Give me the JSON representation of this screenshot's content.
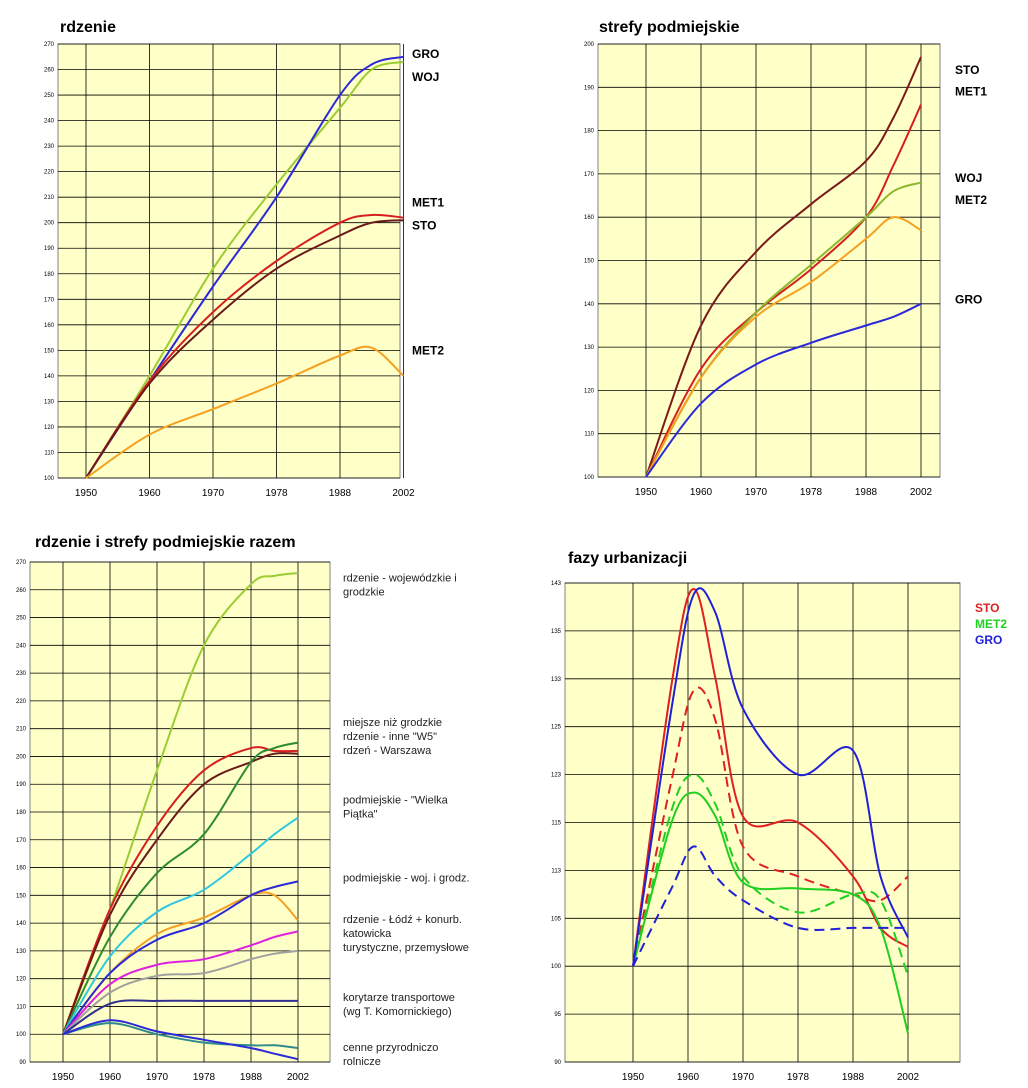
{
  "chart_data": [
    {
      "type": "line",
      "title": "rdzenie",
      "ylim": [
        100,
        270
      ],
      "yticks": [
        100,
        110,
        120,
        130,
        140,
        150,
        160,
        170,
        180,
        190,
        200,
        210,
        220,
        230,
        240,
        250,
        260,
        270
      ],
      "x_ticks": [
        "1950",
        "1960",
        "1970",
        "1978",
        "1988",
        "2002"
      ],
      "grid": true,
      "series": [
        {
          "color": "#9acd32",
          "x": [
            1950,
            1960,
            1970,
            1978,
            1988,
            1995,
            2002
          ],
          "values": [
            100,
            140,
            182,
            215,
            245,
            260,
            263
          ]
        },
        {
          "color": "#2a2ad8",
          "x": [
            1950,
            1960,
            1970,
            1978,
            1988,
            1995,
            2002
          ],
          "values": [
            100,
            138,
            175,
            210,
            250,
            262,
            265
          ]
        },
        {
          "color": "#d62020",
          "x": [
            1950,
            1960,
            1970,
            1978,
            1988,
            1995,
            2002
          ],
          "values": [
            100,
            138,
            165,
            185,
            200,
            203,
            202
          ]
        },
        {
          "color": "#6b1a1a",
          "x": [
            1950,
            1960,
            1970,
            1978,
            1988,
            1995,
            2002
          ],
          "values": [
            100,
            137,
            162,
            182,
            195,
            200,
            201
          ]
        },
        {
          "color": "#f5a020",
          "x": [
            1950,
            1960,
            1970,
            1978,
            1988,
            1995,
            2002
          ],
          "values": [
            100,
            117,
            127,
            137,
            148,
            151,
            140
          ]
        }
      ],
      "labels": [
        {
          "text": "GRO",
          "value": 266,
          "color": "#000000"
        },
        {
          "text": "WOJ",
          "value": 257,
          "color": "#000000"
        },
        {
          "text": "MET1",
          "value": 208,
          "color": "#000000"
        },
        {
          "text": "STO",
          "value": 199,
          "color": "#000000"
        },
        {
          "text": "MET2",
          "value": 150,
          "color": "#000000"
        }
      ]
    },
    {
      "type": "line",
      "title": "strefy podmiejskie",
      "ylim": [
        100,
        200
      ],
      "yticks": [
        100,
        110,
        120,
        130,
        140,
        150,
        160,
        170,
        180,
        190,
        200
      ],
      "x_ticks": [
        "1950",
        "1960",
        "1970",
        "1978",
        "1988",
        "2002"
      ],
      "grid": true,
      "series": [
        {
          "color": "#7a1a1a",
          "x": [
            1950,
            1960,
            1970,
            1978,
            1988,
            1995,
            2002
          ],
          "values": [
            100,
            135,
            152,
            163,
            173,
            183,
            197
          ]
        },
        {
          "color": "#d62020",
          "x": [
            1950,
            1960,
            1970,
            1978,
            1988,
            1995,
            2002
          ],
          "values": [
            100,
            125,
            138,
            148,
            160,
            172,
            186
          ]
        },
        {
          "color": "#8cb82e",
          "x": [
            1950,
            1960,
            1970,
            1978,
            1988,
            1995,
            2002
          ],
          "values": [
            100,
            123,
            138,
            149,
            160,
            166,
            168
          ]
        },
        {
          "color": "#f5a020",
          "x": [
            1950,
            1960,
            1970,
            1978,
            1988,
            1995,
            2002
          ],
          "values": [
            100,
            123,
            137,
            145,
            155,
            160,
            157
          ]
        },
        {
          "color": "#2a2ad8",
          "x": [
            1950,
            1960,
            1970,
            1978,
            1988,
            1995,
            2002
          ],
          "values": [
            100,
            117,
            126,
            131,
            135,
            137,
            140
          ]
        }
      ],
      "labels": [
        {
          "text": "STO",
          "value": 194,
          "color": "#000000"
        },
        {
          "text": "MET1",
          "value": 189,
          "color": "#000000"
        },
        {
          "text": "WOJ",
          "value": 169,
          "color": "#000000"
        },
        {
          "text": "MET2",
          "value": 164,
          "color": "#000000"
        },
        {
          "text": "GRO",
          "value": 141,
          "color": "#000000"
        }
      ]
    },
    {
      "type": "line",
      "title": "rdzenie i strefy podmiejskie razem",
      "ylim": [
        90,
        270
      ],
      "yticks": [
        90,
        100,
        110,
        120,
        130,
        140,
        150,
        160,
        170,
        180,
        190,
        200,
        210,
        220,
        230,
        240,
        250,
        260,
        270
      ],
      "x_ticks": [
        "1950",
        "1960",
        "1970",
        "1978",
        "1988",
        "2002"
      ],
      "grid": true,
      "series": [
        {
          "color": "#9acd32",
          "x": [
            1950,
            1960,
            1970,
            1978,
            1988,
            1995,
            2002
          ],
          "values": [
            100,
            145,
            195,
            240,
            262,
            265,
            266
          ]
        },
        {
          "color": "#d62020",
          "x": [
            1950,
            1960,
            1970,
            1978,
            1988,
            1995,
            2002
          ],
          "values": [
            100,
            145,
            175,
            195,
            203,
            202,
            202
          ]
        },
        {
          "color": "#6b1a1a",
          "x": [
            1950,
            1960,
            1970,
            1978,
            1988,
            1995,
            2002
          ],
          "values": [
            100,
            143,
            170,
            190,
            198,
            201,
            201
          ]
        },
        {
          "color": "#2e8b2e",
          "x": [
            1950,
            1960,
            1970,
            1978,
            1988,
            1995,
            2002
          ],
          "values": [
            100,
            135,
            158,
            172,
            198,
            203,
            205
          ]
        },
        {
          "color": "#30c8e0",
          "x": [
            1950,
            1960,
            1970,
            1978,
            1988,
            1995,
            2002
          ],
          "values": [
            100,
            128,
            144,
            152,
            165,
            172,
            178
          ]
        },
        {
          "color": "#f5a020",
          "x": [
            1950,
            1960,
            1970,
            1978,
            1988,
            1995,
            2002
          ],
          "values": [
            100,
            122,
            136,
            142,
            150,
            150,
            141
          ]
        },
        {
          "color": "#2a2ad8",
          "x": [
            1950,
            1960,
            1970,
            1978,
            1988,
            1995,
            2002
          ],
          "values": [
            100,
            122,
            134,
            140,
            150,
            153,
            155
          ]
        },
        {
          "color": "#e020e0",
          "x": [
            1950,
            1960,
            1970,
            1978,
            1988,
            1995,
            2002
          ],
          "values": [
            100,
            118,
            125,
            127,
            132,
            135,
            137
          ]
        },
        {
          "color": "#a0a0a0",
          "x": [
            1950,
            1960,
            1970,
            1978,
            1988,
            1995,
            2002
          ],
          "values": [
            100,
            115,
            121,
            122,
            127,
            129,
            130
          ]
        },
        {
          "color": "#303090",
          "x": [
            1950,
            1960,
            1970,
            1978,
            1988,
            1995,
            2002
          ],
          "values": [
            100,
            111,
            112,
            112,
            112,
            112,
            112
          ]
        },
        {
          "color": "#2e8b8b",
          "x": [
            1950,
            1960,
            1970,
            1978,
            1988,
            1995,
            2002
          ],
          "values": [
            100,
            104,
            100,
            97,
            96,
            96,
            95
          ]
        },
        {
          "color": "#2a2ad8",
          "x": [
            1950,
            1960,
            1970,
            1978,
            1988,
            1995,
            2002
          ],
          "values": [
            100,
            105,
            101,
            98,
            95,
            93,
            91
          ]
        }
      ],
      "descriptions": [
        {
          "lines": [
            "rdzenie - wojewódzkie i",
            "grodzkie"
          ],
          "value": 263
        },
        {
          "lines": [
            "miejsze niż grodzkie",
            "rdzenie - inne \"W5\"",
            "rdzeń - Warszawa"
          ],
          "value": 211
        },
        {
          "lines": [
            "podmiejskie - \"Wielka",
            "Piątka\""
          ],
          "value": 183
        },
        {
          "lines": [
            "podmiejskie - woj. i grodz."
          ],
          "value": 155
        },
        {
          "lines": [
            "rdzenie - Łódź + konurb.",
            "katowicka",
            "turystyczne, przemysłowe"
          ],
          "value": 140
        },
        {
          "lines": [
            "korytarze transportowe",
            "(wg T. Komornickiego)"
          ],
          "value": 112
        },
        {
          "lines": [
            "cenne przyrodniczo",
            "rolnicze"
          ],
          "value": 94
        }
      ]
    },
    {
      "type": "line",
      "title": "fazy urbanizacji",
      "ylim": [
        90,
        143
      ],
      "yticks": [
        90,
        95,
        100,
        105,
        113,
        115,
        123,
        125,
        133,
        135,
        143
      ],
      "ytick_labels": [
        "90",
        "95",
        "100",
        "105",
        "113",
        "115",
        "123",
        "125",
        "133",
        "135",
        "143"
      ],
      "x_ticks": [
        "1950",
        "1960",
        "1970",
        "1978",
        "1988",
        "2002"
      ],
      "grid": true,
      "series": [
        {
          "color": "#e02020",
          "dash": false,
          "x": [
            1950,
            1957,
            1961,
            1965,
            1970,
            1978,
            1988,
            1995,
            2002
          ],
          "values": [
            100,
            132,
            142,
            133,
            116,
            115,
            112,
            104,
            102
          ]
        },
        {
          "color": "#e02020",
          "dash": true,
          "x": [
            1950,
            1957,
            1961,
            1965,
            1970,
            1978,
            1988,
            1995,
            2002
          ],
          "values": [
            100,
            122,
            131,
            126,
            114,
            112,
            109,
            108,
            112
          ]
        },
        {
          "color": "#20d020",
          "dash": false,
          "x": [
            1950,
            1957,
            1961,
            1965,
            1970,
            1978,
            1988,
            1995,
            2002
          ],
          "values": [
            100,
            115,
            120,
            116,
            111,
            110,
            109,
            104,
            93
          ]
        },
        {
          "color": "#20d020",
          "dash": true,
          "x": [
            1950,
            1957,
            1961,
            1965,
            1970,
            1978,
            1988,
            1995,
            2002
          ],
          "values": [
            100,
            117,
            123,
            118,
            112,
            106,
            109,
            108,
            99
          ]
        },
        {
          "color": "#2020d8",
          "dash": false,
          "x": [
            1950,
            1957,
            1961,
            1965,
            1970,
            1978,
            1988,
            1995,
            2002
          ],
          "values": [
            100,
            128,
            141,
            138,
            128,
            123,
            124,
            112,
            103
          ]
        },
        {
          "color": "#2020d8",
          "dash": true,
          "x": [
            1950,
            1957,
            1961,
            1965,
            1970,
            1978,
            1988,
            1995,
            2002
          ],
          "values": [
            100,
            110,
            114,
            112,
            108,
            104,
            104,
            104,
            104
          ]
        }
      ],
      "legend": [
        {
          "text": "STO",
          "color": "#e02020"
        },
        {
          "text": "MET2",
          "color": "#20d020"
        },
        {
          "text": "GRO",
          "color": "#2020d8"
        }
      ]
    }
  ]
}
